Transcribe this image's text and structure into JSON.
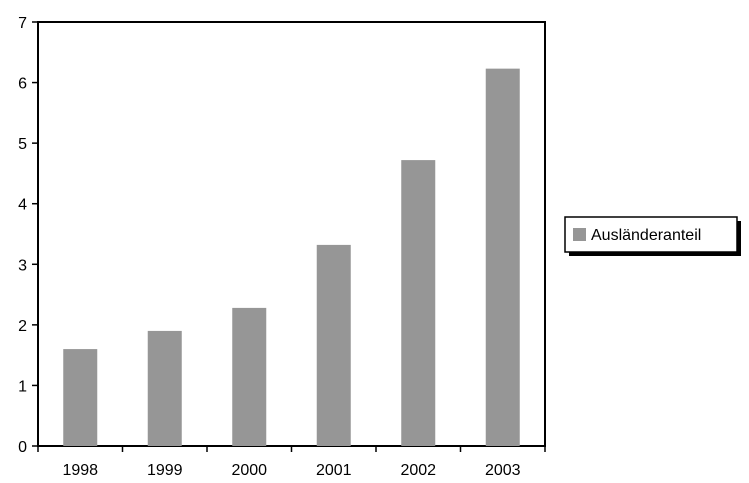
{
  "chart_data": {
    "type": "bar",
    "categories": [
      "1998",
      "1999",
      "2000",
      "2001",
      "2002",
      "2003"
    ],
    "series": [
      {
        "name": "Ausländeranteil",
        "values": [
          1.6,
          1.9,
          2.28,
          3.32,
          4.72,
          6.23
        ],
        "color": "#969696"
      }
    ],
    "ylim": [
      0,
      7
    ],
    "yticks": [
      "0",
      "1",
      "2",
      "3",
      "4",
      "5",
      "6",
      "7"
    ],
    "grid": false,
    "legend_position": "right"
  }
}
